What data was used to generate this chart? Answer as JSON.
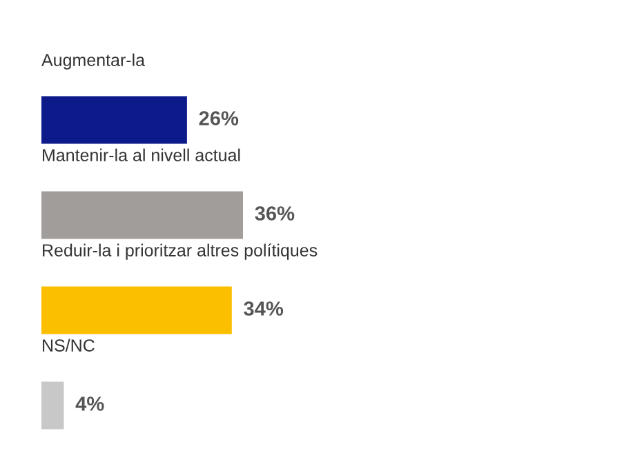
{
  "chart_data": {
    "type": "bar",
    "orientation": "horizontal",
    "categories": [
      "Augmentar-la",
      "Mantenir-la al nivell actual",
      "Reduir-la i prioritzar altres polítiques",
      "NS/NC"
    ],
    "values": [
      26,
      36,
      34,
      4
    ],
    "colors": [
      "#0c1a8a",
      "#a19d9b",
      "#fbbf00",
      "#c8c8c8"
    ],
    "value_labels": [
      "26%",
      "36%",
      "34%",
      "4%"
    ]
  }
}
